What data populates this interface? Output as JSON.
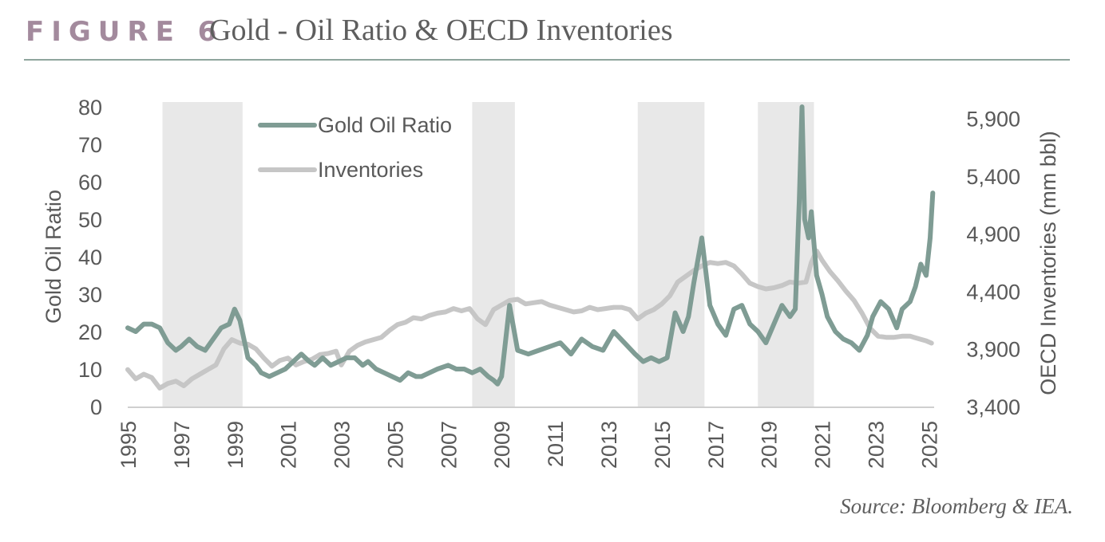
{
  "header": {
    "figure_label": "FIGURE 6",
    "title": "Gold - Oil Ratio & OECD Inventories"
  },
  "source": "Source: Bloomberg & IEA.",
  "colors": {
    "gold_oil_ratio": "#7f9c94",
    "inventories": "#c6c6c6",
    "shading": "#e8e8e8",
    "text": "#595959",
    "header_label": "#a38a9d",
    "rule": "#8fa59d"
  },
  "chart_data": {
    "type": "line",
    "ylabel": "Gold Oil Ratio",
    "y2label": "OECD Inventories (mm bbl)",
    "ylim": [
      0,
      80
    ],
    "y2lim": [
      3400,
      6000
    ],
    "xlim": [
      1995,
      2025.2
    ],
    "x_ticks": [
      "1995",
      "1997",
      "1999",
      "2001",
      "2003",
      "2005",
      "2007",
      "2009",
      "2011",
      "2013",
      "2015",
      "2017",
      "2019",
      "2021",
      "2023",
      "2025"
    ],
    "y_ticks": [
      "0",
      "10",
      "20",
      "30",
      "40",
      "50",
      "60",
      "70",
      "80"
    ],
    "y2_ticks": [
      "3,400",
      "3,900",
      "4,400",
      "4,900",
      "5,400",
      "5,900"
    ],
    "legend": {
      "placement": "top-left",
      "entries": [
        "Gold Oil Ratio",
        "Inventories"
      ]
    },
    "shaded_periods": [
      [
        1996.3,
        1999.3
      ],
      [
        2007.9,
        2009.5
      ],
      [
        2014.1,
        2016.6
      ],
      [
        2018.6,
        2020.7
      ]
    ],
    "series": [
      {
        "name": "Gold Oil Ratio",
        "axis": "left",
        "x": [
          1995.0,
          1995.3,
          1995.6,
          1995.9,
          1996.2,
          1996.5,
          1996.8,
          1997.0,
          1997.3,
          1997.6,
          1997.9,
          1998.2,
          1998.5,
          1998.8,
          1999.0,
          1999.2,
          1999.5,
          1999.8,
          2000.0,
          2000.3,
          2000.6,
          2000.9,
          2001.2,
          2001.5,
          2001.8,
          2002.0,
          2002.3,
          2002.6,
          2002.9,
          2003.2,
          2003.5,
          2003.8,
          2004.0,
          2004.3,
          2004.6,
          2004.9,
          2005.2,
          2005.5,
          2005.8,
          2006.0,
          2006.3,
          2006.6,
          2007.0,
          2007.3,
          2007.6,
          2007.9,
          2008.2,
          2008.5,
          2008.7,
          2008.85,
          2009.0,
          2009.3,
          2009.6,
          2010.0,
          2010.4,
          2010.8,
          2011.2,
          2011.6,
          2012.0,
          2012.4,
          2012.8,
          2013.2,
          2013.6,
          2014.0,
          2014.3,
          2014.6,
          2014.9,
          2015.2,
          2015.5,
          2015.8,
          2016.0,
          2016.2,
          2016.5,
          2016.8,
          2017.1,
          2017.4,
          2017.7,
          2018.0,
          2018.3,
          2018.6,
          2018.9,
          2019.2,
          2019.5,
          2019.8,
          2020.0,
          2020.15,
          2020.25,
          2020.35,
          2020.5,
          2020.6,
          2020.8,
          2021.0,
          2021.2,
          2021.5,
          2021.8,
          2022.1,
          2022.4,
          2022.7,
          2022.9,
          2023.2,
          2023.5,
          2023.8,
          2024.0,
          2024.3,
          2024.5,
          2024.7,
          2024.9,
          2025.05,
          2025.15
        ],
        "values": [
          21,
          20,
          22,
          22,
          21,
          17,
          15,
          16,
          18,
          16,
          15,
          18,
          21,
          22,
          26,
          23,
          13,
          11,
          9,
          8,
          9,
          10,
          12,
          14,
          12,
          11,
          13,
          11,
          12,
          13,
          13,
          11,
          12,
          10,
          9,
          8,
          7,
          9,
          8,
          8,
          9,
          10,
          11,
          10,
          10,
          9,
          10,
          8,
          7,
          6,
          8,
          27,
          15,
          14,
          15,
          16,
          17,
          14,
          18,
          16,
          15,
          20,
          17,
          14,
          12,
          13,
          12,
          13,
          25,
          20,
          24,
          33,
          45,
          27,
          22,
          19,
          26,
          27,
          22,
          20,
          17,
          22,
          27,
          24,
          26,
          55,
          80,
          50,
          45,
          52,
          35,
          30,
          24,
          20,
          18,
          17,
          15,
          19,
          24,
          28,
          26,
          21,
          26,
          28,
          32,
          38,
          35,
          45,
          57
        ]
      },
      {
        "name": "Inventories",
        "axis": "right",
        "x": [
          1995.0,
          1995.3,
          1995.6,
          1995.9,
          1996.2,
          1996.5,
          1996.8,
          1997.1,
          1997.4,
          1997.7,
          1998.0,
          1998.3,
          1998.6,
          1998.9,
          1999.2,
          1999.5,
          1999.8,
          2000.1,
          2000.4,
          2000.7,
          2001.0,
          2001.3,
          2001.6,
          2001.9,
          2002.2,
          2002.5,
          2002.8,
          2003.0,
          2003.3,
          2003.6,
          2003.9,
          2004.2,
          2004.5,
          2004.8,
          2005.1,
          2005.4,
          2005.7,
          2006.0,
          2006.3,
          2006.6,
          2006.9,
          2007.2,
          2007.5,
          2007.8,
          2008.1,
          2008.4,
          2008.7,
          2009.0,
          2009.3,
          2009.6,
          2009.9,
          2010.2,
          2010.5,
          2010.8,
          2011.1,
          2011.4,
          2011.7,
          2012.0,
          2012.3,
          2012.6,
          2012.9,
          2013.2,
          2013.5,
          2013.8,
          2014.1,
          2014.4,
          2014.7,
          2015.0,
          2015.3,
          2015.6,
          2015.9,
          2016.2,
          2016.5,
          2016.8,
          2017.1,
          2017.4,
          2017.7,
          2018.0,
          2018.3,
          2018.6,
          2018.9,
          2019.2,
          2019.5,
          2019.8,
          2020.1,
          2020.4,
          2020.6,
          2020.8,
          2021.0,
          2021.3,
          2021.6,
          2021.9,
          2022.2,
          2022.5,
          2022.8,
          2023.1,
          2023.4,
          2023.7,
          2024.0,
          2024.3,
          2024.6,
          2024.9,
          2025.1
        ],
        "values": [
          3720,
          3640,
          3680,
          3650,
          3560,
          3600,
          3620,
          3580,
          3640,
          3680,
          3720,
          3760,
          3900,
          3980,
          3950,
          3940,
          3900,
          3820,
          3750,
          3800,
          3820,
          3760,
          3790,
          3810,
          3850,
          3860,
          3880,
          3760,
          3880,
          3930,
          3960,
          3980,
          4000,
          4060,
          4110,
          4130,
          4170,
          4160,
          4190,
          4210,
          4220,
          4250,
          4230,
          4250,
          4160,
          4110,
          4240,
          4280,
          4320,
          4330,
          4290,
          4300,
          4310,
          4280,
          4260,
          4240,
          4220,
          4230,
          4260,
          4240,
          4250,
          4260,
          4260,
          4240,
          4160,
          4210,
          4240,
          4290,
          4360,
          4480,
          4530,
          4580,
          4620,
          4650,
          4640,
          4650,
          4620,
          4550,
          4470,
          4440,
          4420,
          4430,
          4450,
          4480,
          4470,
          4480,
          4650,
          4750,
          4670,
          4570,
          4490,
          4400,
          4320,
          4210,
          4080,
          4010,
          4000,
          4000,
          4010,
          4010,
          3990,
          3970,
          3950
        ]
      }
    ]
  }
}
